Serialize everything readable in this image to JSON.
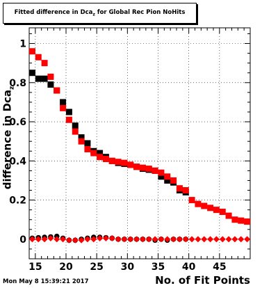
{
  "title": {
    "main": "Fitted difference in Dca",
    "sub": "z",
    "rest": " for Global Rec Pion NoHits"
  },
  "timestamp": "Mon May  8 15:39:21 2017",
  "chart_data": {
    "type": "scatter",
    "title": "Fitted difference in Dca_z for Global Rec Pion NoHits",
    "xlabel": "No. of Fit Points",
    "ylabel": "difference in Dca_z",
    "xlim": [
      14,
      50
    ],
    "ylim": [
      -0.1,
      1.08
    ],
    "xticks": [
      15,
      20,
      25,
      30,
      35,
      40,
      45
    ],
    "yticks": [
      0,
      0.2,
      0.4,
      0.6,
      0.8,
      1
    ],
    "grid": true,
    "series": [
      {
        "marker": "square",
        "color": "#000000",
        "x": [
          14.5,
          15.5,
          16.5,
          17.5,
          18.5,
          19.5,
          20.5,
          21.5,
          22.5,
          23.5,
          24.5,
          25.5,
          26.5,
          27.5,
          28.5,
          29.5,
          30.5,
          31.5,
          32.5,
          33.5,
          34.5,
          35.5,
          36.5,
          37.5,
          38.5,
          39.5
        ],
        "y": [
          0.85,
          0.82,
          0.82,
          0.79,
          0.76,
          0.7,
          0.65,
          0.58,
          0.52,
          0.49,
          0.45,
          0.44,
          0.42,
          0.4,
          0.39,
          0.385,
          0.38,
          0.37,
          0.36,
          0.355,
          0.35,
          0.32,
          0.3,
          0.29,
          0.25,
          0.24
        ]
      },
      {
        "marker": "square",
        "color": "#ff0000",
        "x": [
          14.5,
          15.5,
          16.5,
          17.5,
          18.5,
          19.5,
          20.5,
          21.5,
          22.5,
          23.5,
          24.5,
          25.5,
          26.5,
          27.5,
          28.5,
          29.5,
          30.5,
          31.5,
          32.5,
          33.5,
          34.5,
          35.5,
          36.5,
          37.5,
          38.5,
          39.5,
          40.5,
          41.5,
          42.5,
          43.5,
          44.5,
          45.5,
          46.5,
          47.5,
          48.5,
          49.5
        ],
        "y": [
          0.96,
          0.93,
          0.9,
          0.83,
          0.76,
          0.67,
          0.61,
          0.55,
          0.5,
          0.46,
          0.44,
          0.42,
          0.41,
          0.4,
          0.395,
          0.39,
          0.38,
          0.37,
          0.365,
          0.36,
          0.35,
          0.34,
          0.32,
          0.3,
          0.26,
          0.25,
          0.2,
          0.18,
          0.17,
          0.16,
          0.15,
          0.14,
          0.12,
          0.1,
          0.095,
          0.09
        ]
      },
      {
        "marker": "circle",
        "color": "#000000",
        "x": [
          14.5,
          15.5,
          16.5,
          17.5,
          18.5,
          19.5,
          20.5,
          21.5,
          22.5,
          23.5,
          24.5,
          25.5,
          26.5,
          27.5,
          28.5,
          29.5,
          30.5,
          31.5,
          32.5,
          33.5,
          34.5,
          35.5,
          36.5,
          37.5,
          38.5,
          39.5
        ],
        "y": [
          0.005,
          0.008,
          0.01,
          0.012,
          0.015,
          0.005,
          -0.005,
          -0.005,
          0.0,
          0.005,
          0.01,
          0.01,
          0.008,
          0.005,
          0.0,
          0.0,
          0.0,
          0.0,
          0.0,
          0.0,
          -0.005,
          0.0,
          -0.005,
          0.0,
          0.0,
          0.0
        ]
      },
      {
        "marker": "diamond",
        "color": "#ff0000",
        "x": [
          14.5,
          15.5,
          16.5,
          17.5,
          18.5,
          19.5,
          20.5,
          21.5,
          22.5,
          23.5,
          24.5,
          25.5,
          26.5,
          27.5,
          28.5,
          29.5,
          30.5,
          31.5,
          32.5,
          33.5,
          34.5,
          35.5,
          36.5,
          37.5,
          38.5,
          39.5,
          40.5,
          41.5,
          42.5,
          43.5,
          44.5,
          45.5,
          46.5,
          47.5,
          48.5,
          49.5
        ],
        "y": [
          0.0,
          0.0,
          0.0,
          0.005,
          0.0,
          0.0,
          -0.005,
          -0.005,
          -0.005,
          0.0,
          0.0,
          0.005,
          0.005,
          0.005,
          0.0,
          0.0,
          0.0,
          0.0,
          0.0,
          0.0,
          0.0,
          0.0,
          0.0,
          0.0,
          0.0,
          0.0,
          0.0,
          0.0,
          0.0,
          0.0,
          0.0,
          0.0,
          0.0,
          0.0,
          0.0,
          0.0
        ]
      }
    ]
  }
}
